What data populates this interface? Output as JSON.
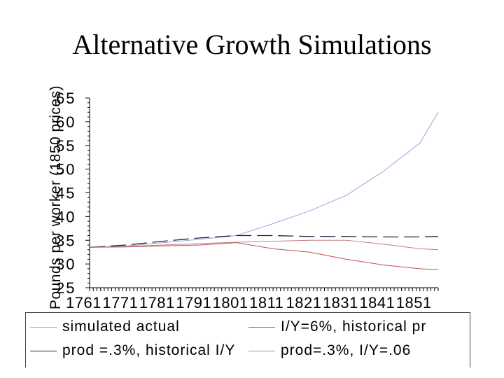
{
  "title": "Alternative Growth Simulations",
  "chart_data": {
    "type": "line",
    "title": "Alternative Growth Simulations",
    "ylabel": "Pounds per worker (1850 prices)",
    "xlabel": "",
    "x": [
      1761,
      1771,
      1781,
      1791,
      1801,
      1811,
      1821,
      1831,
      1841,
      1851,
      1856
    ],
    "x_tick_labels": [
      "1761",
      "1771",
      "1781",
      "1791",
      "1801",
      "1811",
      "1821",
      "1831",
      "1841",
      "1851"
    ],
    "y_tick_labels": [
      "25",
      "30",
      "35",
      "40",
      "45",
      "50",
      "55",
      "60",
      "65"
    ],
    "ylim": [
      25,
      65
    ],
    "series": [
      {
        "name": "simulated actual",
        "color": "#9aa6d6",
        "values": [
          33.5,
          33.8,
          34.5,
          35.2,
          36.0,
          38.5,
          41.2,
          44.5,
          49.5,
          55.5,
          62.0
        ]
      },
      {
        "name": "I/Y=6%, historical pr",
        "color": "#c05050",
        "values": [
          33.5,
          33.6,
          33.8,
          34.0,
          34.5,
          33.2,
          32.5,
          31.0,
          29.8,
          29.0,
          28.8
        ]
      },
      {
        "name": "prod =.3%, historical I/Y",
        "color": "#202040",
        "values": [
          33.5,
          34.0,
          34.8,
          35.5,
          36.0,
          36.0,
          35.8,
          35.8,
          35.7,
          35.7,
          35.8
        ]
      },
      {
        "name": "prod=.3%, I/Y=.06",
        "color": "#c08080",
        "values": [
          33.5,
          33.7,
          34.0,
          34.3,
          34.6,
          34.8,
          35.0,
          35.0,
          34.2,
          33.2,
          33.0
        ]
      }
    ],
    "legend_position": "bottom",
    "grid": false
  }
}
